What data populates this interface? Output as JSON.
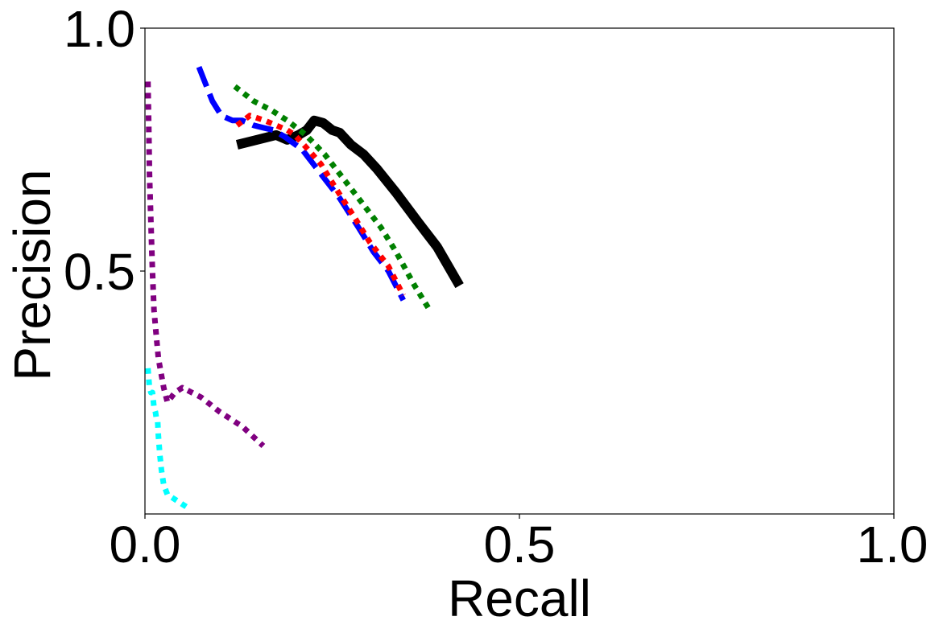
{
  "chart_data": {
    "type": "line",
    "title": "",
    "xlabel": "Recall",
    "ylabel": "Precision",
    "xlim": [
      0.0,
      1.0
    ],
    "ylim": [
      0.0,
      1.0
    ],
    "xticks": [
      "0.0",
      "0.5",
      "1.0"
    ],
    "yticks": [
      "0.5",
      "1.0"
    ],
    "grid": false,
    "legend": "none",
    "series": [
      {
        "color": "#000000",
        "style": "solid",
        "x": [
          0.123,
          0.175,
          0.19,
          0.205,
          0.216,
          0.226,
          0.238,
          0.25,
          0.26,
          0.275,
          0.292,
          0.31,
          0.336,
          0.365,
          0.39,
          0.42
        ],
        "y": [
          0.76,
          0.78,
          0.77,
          0.78,
          0.79,
          0.81,
          0.805,
          0.79,
          0.785,
          0.76,
          0.74,
          0.71,
          0.66,
          0.6,
          0.55,
          0.47
        ]
      },
      {
        "color": "#0000ff",
        "style": "dashed",
        "x": [
          0.072,
          0.09,
          0.102,
          0.117,
          0.13,
          0.145,
          0.158,
          0.172,
          0.188,
          0.21,
          0.235,
          0.26,
          0.285,
          0.305,
          0.325,
          0.345
        ],
        "y": [
          0.92,
          0.85,
          0.82,
          0.81,
          0.81,
          0.8,
          0.795,
          0.79,
          0.775,
          0.75,
          0.7,
          0.65,
          0.59,
          0.54,
          0.5,
          0.44
        ]
      },
      {
        "color": "#ff0000",
        "style": "dotted",
        "x": [
          0.123,
          0.14,
          0.16,
          0.175,
          0.19,
          0.2,
          0.218,
          0.235,
          0.255,
          0.28,
          0.3,
          0.325,
          0.345
        ],
        "y": [
          0.8,
          0.82,
          0.81,
          0.8,
          0.79,
          0.78,
          0.75,
          0.72,
          0.67,
          0.61,
          0.56,
          0.51,
          0.45
        ]
      },
      {
        "color": "#008000",
        "style": "dotted",
        "x": [
          0.12,
          0.145,
          0.17,
          0.19,
          0.215,
          0.24,
          0.265,
          0.29,
          0.315,
          0.335,
          0.36,
          0.38
        ],
        "y": [
          0.88,
          0.85,
          0.83,
          0.81,
          0.78,
          0.74,
          0.69,
          0.64,
          0.59,
          0.54,
          0.47,
          0.42
        ]
      },
      {
        "color": "#800080",
        "style": "dotted",
        "x": [
          0.004,
          0.005,
          0.006,
          0.008,
          0.01,
          0.012,
          0.015,
          0.018,
          0.025,
          0.03,
          0.04,
          0.05,
          0.075,
          0.1,
          0.13,
          0.158
        ],
        "y": [
          0.89,
          0.8,
          0.7,
          0.6,
          0.5,
          0.42,
          0.37,
          0.32,
          0.26,
          0.23,
          0.25,
          0.26,
          0.24,
          0.21,
          0.18,
          0.14
        ]
      },
      {
        "color": "#00ffff",
        "style": "dotted",
        "x": [
          0.004,
          0.006,
          0.008,
          0.01,
          0.012,
          0.014,
          0.015,
          0.017,
          0.018,
          0.02,
          0.022,
          0.025,
          0.03,
          0.05,
          0.06
        ],
        "y": [
          0.3,
          0.26,
          0.25,
          0.25,
          0.22,
          0.21,
          0.2,
          0.19,
          0.16,
          0.12,
          0.09,
          0.06,
          0.04,
          0.02,
          0.01
        ]
      }
    ]
  }
}
